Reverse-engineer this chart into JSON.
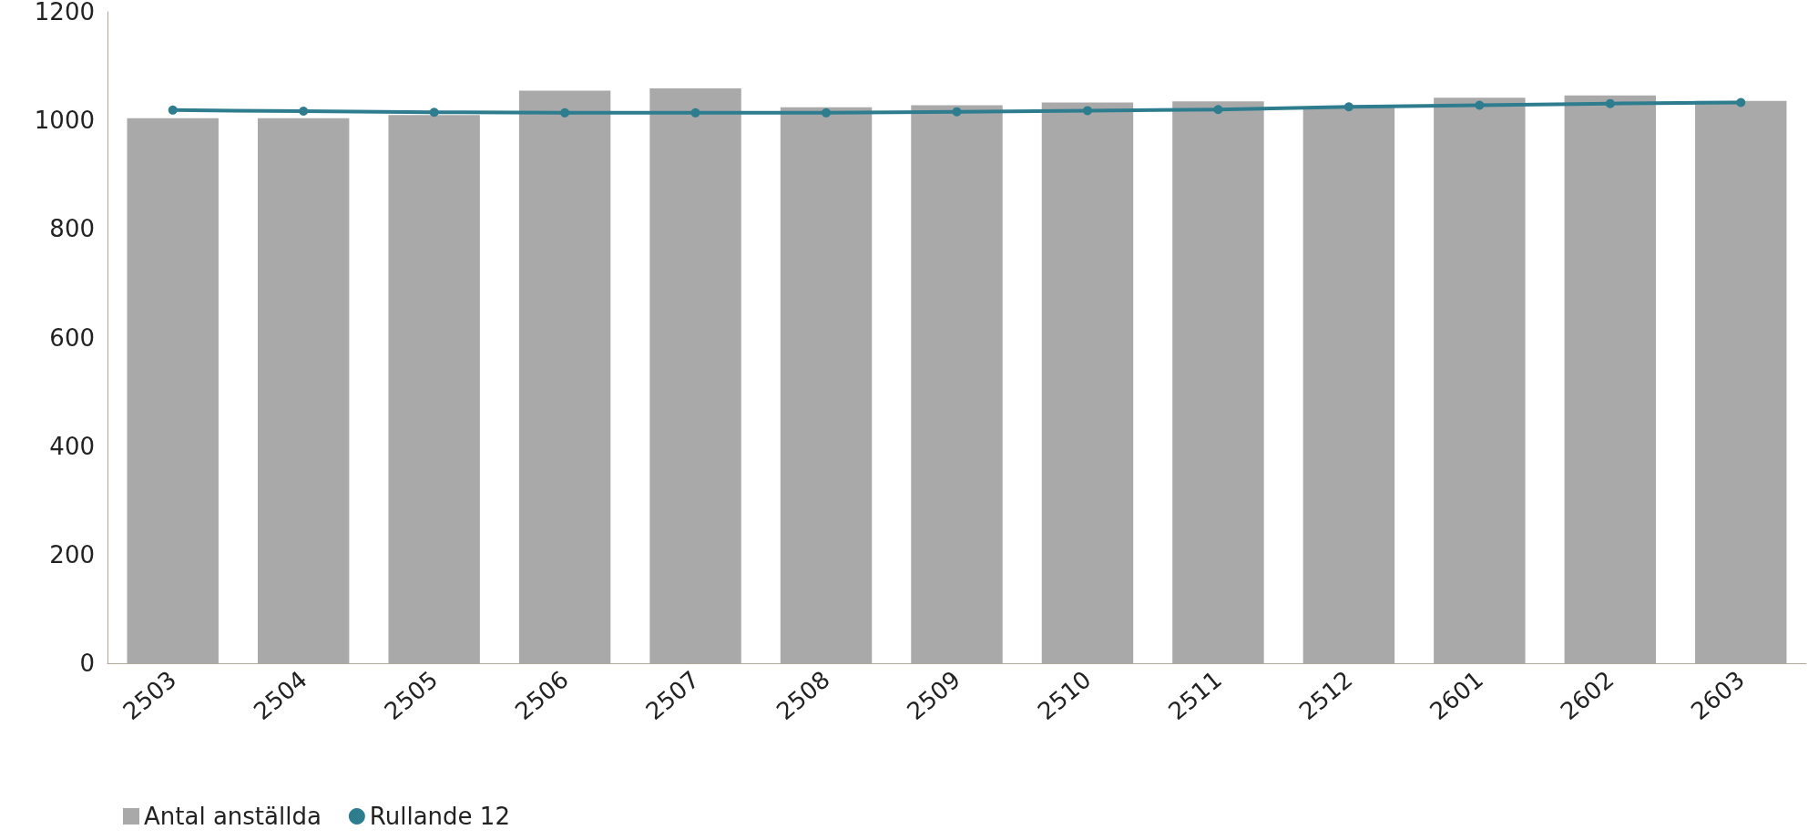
{
  "chart_data": {
    "type": "bar",
    "categories": [
      "2503",
      "2504",
      "2505",
      "2506",
      "2507",
      "2508",
      "2509",
      "2510",
      "2511",
      "2512",
      "2601",
      "2602",
      "2603"
    ],
    "series": [
      {
        "name": "Antal anställda",
        "color": "#a9a9a9",
        "values": [
          1004,
          1004,
          1010,
          1055,
          1059,
          1024,
          1028,
          1033,
          1035,
          1024,
          1042,
          1046,
          1036
        ]
      },
      {
        "name": "Rullande 12",
        "type": "line",
        "color": "#2e7d8f",
        "marker": "circle",
        "values": [
          1019,
          1017,
          1015,
          1014,
          1014,
          1014,
          1016,
          1018,
          1020,
          1025,
          1028,
          1031,
          1033
        ]
      }
    ],
    "ylim": [
      0,
      1200
    ],
    "yticks": [
      0,
      200,
      400,
      600,
      800,
      1000,
      1200
    ],
    "grid": false,
    "legend": "bottom left"
  }
}
